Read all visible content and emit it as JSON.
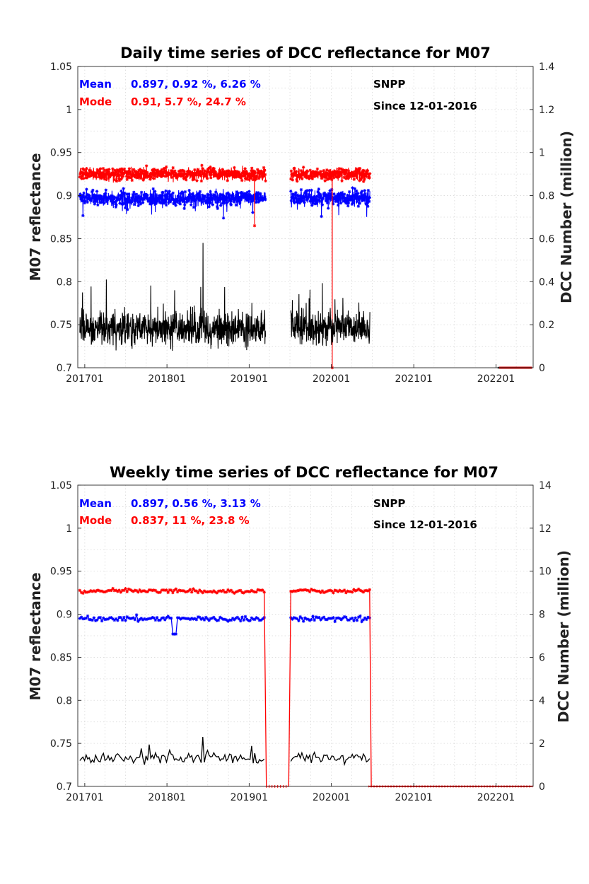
{
  "chart_data": [
    {
      "type": "line",
      "title": "Daily time series of DCC reflectance for M07",
      "ylabel": "M07 reflectance",
      "y2label": "DCC Number (million)",
      "xticks": [
        "201701",
        "201801",
        "201901",
        "202001",
        "202101",
        "202201"
      ],
      "ylim": [
        0.7,
        1.05
      ],
      "yticks": [
        "0.7",
        "0.75",
        "0.8",
        "0.85",
        "0.9",
        "0.95",
        "1",
        "1.05"
      ],
      "y2lim": [
        0,
        1.4
      ],
      "y2ticks": [
        "0",
        "0.2",
        "0.4",
        "0.6",
        "0.8",
        "1",
        "1.2",
        "1.4"
      ],
      "grid": true,
      "annotations": {
        "mean_label": "Mean",
        "mean_stats": "0.897, 0.92 %, 6.26 %",
        "mode_label": "Mode",
        "mode_stats": "0.91, 5.7 %, 24.7 %",
        "sensor": "SNPP",
        "since": "Since 12-01-2016"
      },
      "colors": {
        "mean": "#0000ff",
        "mode": "#ff0000",
        "count": "#000000"
      },
      "series": [
        {
          "name": "Mean",
          "axis": "left",
          "marker": "star",
          "segments": [
            [
              "2016-12-10",
              "2019-03-15"
            ],
            [
              "2019-07-05",
              "2020-06-20"
            ]
          ],
          "level": 0.897,
          "spread": 0.009
        },
        {
          "name": "Mode",
          "axis": "left",
          "marker": "star",
          "segments": [
            [
              "2016-12-10",
              "2019-03-15"
            ],
            [
              "2019-07-05",
              "2020-06-20"
            ]
          ],
          "level": 0.925,
          "spread": 0.007,
          "spikes": [
            {
              "x": "2019-01-25",
              "y": 0.865
            },
            {
              "x": "2020-01-05",
              "y": 0.7
            }
          ]
        },
        {
          "name": "DCC Number",
          "axis": "right",
          "segments": [
            [
              "2016-12-10",
              "2019-03-15"
            ],
            [
              "2019-07-05",
              "2020-06-20"
            ]
          ],
          "level": 0.18,
          "spread": 0.07,
          "peak": {
            "x": "2018-06-10",
            "y": 0.58
          },
          "tail": [
            [
              "2022-01-15",
              "2022-06-10"
            ]
          ]
        }
      ]
    },
    {
      "type": "line",
      "title": "Weekly time series of DCC reflectance for M07",
      "ylabel": "M07 reflectance",
      "y2label": "DCC Number (million)",
      "xticks": [
        "201701",
        "201801",
        "201901",
        "202001",
        "202101",
        "202201"
      ],
      "ylim": [
        0.7,
        1.05
      ],
      "yticks": [
        "0.7",
        "0.75",
        "0.8",
        "0.85",
        "0.9",
        "0.95",
        "1",
        "1.05"
      ],
      "y2lim": [
        0,
        14
      ],
      "y2ticks": [
        "0",
        "2",
        "4",
        "6",
        "8",
        "10",
        "12",
        "14"
      ],
      "grid": true,
      "annotations": {
        "mean_label": "Mean",
        "mean_stats": "0.897, 0.56 %, 3.13 %",
        "mode_label": "Mode",
        "mode_stats": "0.837, 11 %, 23.8 %",
        "sensor": "SNPP",
        "since": "Since 12-01-2016"
      },
      "colors": {
        "mean": "#0000ff",
        "mode": "#ff0000",
        "count": "#000000"
      },
      "series": [
        {
          "name": "Mean",
          "axis": "left",
          "marker": "star",
          "segments": [
            [
              "2016-12-10",
              "2019-03-15"
            ],
            [
              "2019-07-05",
              "2020-06-20"
            ]
          ],
          "level": 0.895,
          "spread": 0.004,
          "dip": {
            "x": "2018-02-05",
            "y": 0.877
          }
        },
        {
          "name": "Mode",
          "axis": "left",
          "marker": "star",
          "segments": [
            [
              "2016-12-10",
              "2019-03-15"
            ],
            [
              "2019-07-05",
              "2020-06-20"
            ]
          ],
          "level": 0.927,
          "spread": 0.003,
          "gap_drop": [
            [
              "2019-03-15",
              "2019-07-05"
            ]
          ],
          "tail": [
            [
              "2020-06-20",
              "2022-06-10"
            ]
          ]
        },
        {
          "name": "DCC Number",
          "axis": "right",
          "segments": [
            [
              "2016-12-10",
              "2019-03-15"
            ],
            [
              "2019-07-05",
              "2020-06-20"
            ]
          ],
          "level": 1.3,
          "spread": 0.25,
          "peak": {
            "x": "2018-06-10",
            "y": 2.3
          }
        }
      ]
    }
  ]
}
